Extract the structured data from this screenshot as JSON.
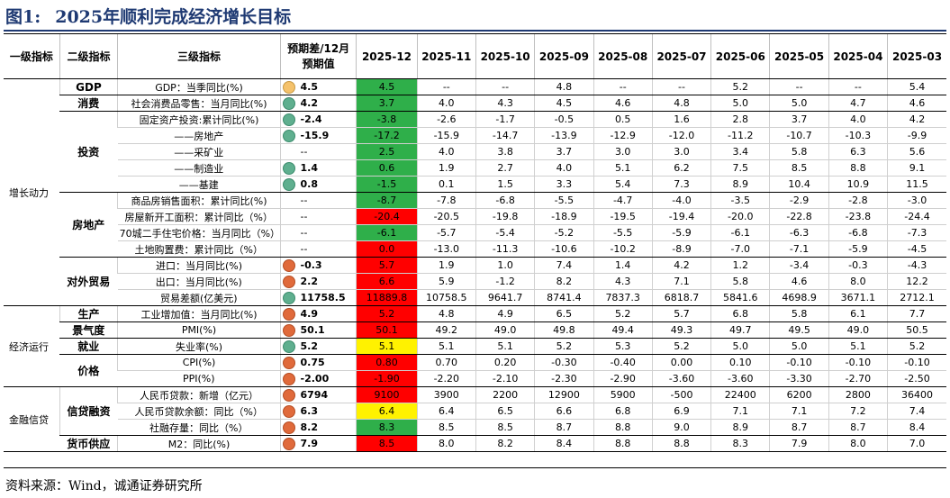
{
  "figure": {
    "number": "图1:",
    "title": "2025年顺利完成经济增长目标"
  },
  "header": {
    "l1": "一级指标",
    "l2": "二级指标",
    "l3": "三级指标",
    "pred_line1": "预期差/12月",
    "pred_line2": "预期值",
    "months": [
      "2025-12",
      "2025-11",
      "2025-10",
      "2025-09",
      "2025-08",
      "2025-07",
      "2025-06",
      "2025-05",
      "2025-04",
      "2025-03"
    ]
  },
  "groups_l1": [
    "增长动力",
    "经济运行",
    "金融信贷"
  ],
  "groups_l2": [
    "GDP",
    "消费",
    "投资",
    "房地产",
    "对外贸易",
    "生产",
    "景气度",
    "就业",
    "价格",
    "信贷融资",
    "货币供应"
  ],
  "rows": [
    {
      "name": "GDP：当季同比(%)",
      "dot": "yellow",
      "pred": "4.5",
      "fill": "green",
      "vals": [
        "4.5",
        "--",
        "--",
        "4.8",
        "--",
        "--",
        "5.2",
        "--",
        "--",
        "5.4"
      ]
    },
    {
      "name": "社会消费品零售：当月同比(%)",
      "dot": "green",
      "pred": "4.2",
      "fill": "green",
      "vals": [
        "3.7",
        "4.0",
        "4.3",
        "4.5",
        "4.6",
        "4.8",
        "5.0",
        "5.0",
        "4.7",
        "4.6"
      ]
    },
    {
      "name": "固定资产投资:累计同比(%)",
      "dot": "green",
      "pred": "-2.4",
      "fill": "green",
      "vals": [
        "-3.8",
        "-2.6",
        "-1.7",
        "-0.5",
        "0.5",
        "1.6",
        "2.8",
        "3.7",
        "4.0",
        "4.2"
      ]
    },
    {
      "name": "——房地产",
      "dot": "green",
      "pred": "-15.9",
      "fill": "green",
      "vals": [
        "-17.2",
        "-15.9",
        "-14.7",
        "-13.9",
        "-12.9",
        "-12.0",
        "-11.2",
        "-10.7",
        "-10.3",
        "-9.9"
      ]
    },
    {
      "name": "——采矿业",
      "dot": "",
      "pred": "--",
      "fill": "green",
      "vals": [
        "2.5",
        "4.0",
        "3.8",
        "3.7",
        "3.0",
        "3.0",
        "3.4",
        "5.8",
        "6.3",
        "5.6"
      ]
    },
    {
      "name": "——制造业",
      "dot": "green",
      "pred": "1.4",
      "fill": "green",
      "vals": [
        "0.6",
        "1.9",
        "2.7",
        "4.0",
        "5.1",
        "6.2",
        "7.5",
        "8.5",
        "8.8",
        "9.1"
      ]
    },
    {
      "name": "——基建",
      "dot": "green",
      "pred": "0.8",
      "fill": "green",
      "vals": [
        "-1.5",
        "0.1",
        "1.5",
        "3.3",
        "5.4",
        "7.3",
        "8.9",
        "10.4",
        "10.9",
        "11.5"
      ]
    },
    {
      "name": "商品房销售面积：累计同比(%)",
      "dot": "",
      "pred": "--",
      "fill": "green",
      "vals": [
        "-8.7",
        "-7.8",
        "-6.8",
        "-5.5",
        "-4.7",
        "-4.0",
        "-3.5",
        "-2.9",
        "-2.8",
        "-3.0"
      ]
    },
    {
      "name": "房屋新开工面积：累计同比（%）",
      "dot": "",
      "pred": "--",
      "fill": "red",
      "vals": [
        "-20.4",
        "-20.5",
        "-19.8",
        "-18.9",
        "-19.5",
        "-19.4",
        "-20.0",
        "-22.8",
        "-23.8",
        "-24.4"
      ]
    },
    {
      "name": "70城二手住宅价格：当月同比（%）",
      "dot": "",
      "pred": "--",
      "fill": "green",
      "vals": [
        "-6.1",
        "-5.7",
        "-5.4",
        "-5.2",
        "-5.5",
        "-5.9",
        "-6.1",
        "-6.3",
        "-6.8",
        "-7.3"
      ]
    },
    {
      "name": "土地购置费：累计同比（%）",
      "dot": "",
      "pred": "--",
      "fill": "red",
      "vals": [
        "0.0",
        "-13.0",
        "-11.3",
        "-10.6",
        "-10.2",
        "-8.9",
        "-7.0",
        "-7.1",
        "-5.9",
        "-4.5"
      ]
    },
    {
      "name": "进口：当月同比(%)",
      "dot": "red",
      "pred": "-0.3",
      "fill": "red",
      "vals": [
        "5.7",
        "1.9",
        "1.0",
        "7.4",
        "1.4",
        "4.2",
        "1.2",
        "-3.4",
        "-0.3",
        "-4.3"
      ]
    },
    {
      "name": "出口：当月同比(%)",
      "dot": "red",
      "pred": "2.2",
      "fill": "red",
      "vals": [
        "6.6",
        "5.9",
        "-1.2",
        "8.2",
        "4.3",
        "7.1",
        "5.8",
        "4.6",
        "8.0",
        "12.2"
      ]
    },
    {
      "name": "贸易差额(亿美元)",
      "dot": "green",
      "pred": "11758.5",
      "fill": "red",
      "vals": [
        "11889.8",
        "10758.5",
        "9641.7",
        "8741.4",
        "7837.3",
        "6818.7",
        "5841.6",
        "4698.9",
        "3671.1",
        "2712.1"
      ]
    },
    {
      "name": "工业增加值：当月同比(%)",
      "dot": "red",
      "pred": "4.9",
      "fill": "red",
      "vals": [
        "5.2",
        "4.8",
        "4.9",
        "6.5",
        "5.2",
        "5.7",
        "6.8",
        "5.8",
        "6.1",
        "7.7"
      ]
    },
    {
      "name": "PMI(%)",
      "dot": "red",
      "pred": "50.1",
      "fill": "red",
      "vals": [
        "50.1",
        "49.2",
        "49.0",
        "49.8",
        "49.4",
        "49.3",
        "49.7",
        "49.5",
        "49.0",
        "50.5"
      ]
    },
    {
      "name": "失业率(%)",
      "dot": "green",
      "pred": "5.2",
      "fill": "yellow",
      "vals": [
        "5.1",
        "5.1",
        "5.1",
        "5.2",
        "5.3",
        "5.2",
        "5.0",
        "5.0",
        "5.1",
        "5.2"
      ]
    },
    {
      "name": "CPI(%)",
      "dot": "red",
      "pred": "0.75",
      "fill": "red",
      "vals": [
        "0.80",
        "0.70",
        "0.20",
        "-0.30",
        "-0.40",
        "0.00",
        "0.10",
        "-0.10",
        "-0.10",
        "-0.10"
      ]
    },
    {
      "name": "PPI(%)",
      "dot": "red",
      "pred": "-2.00",
      "fill": "red",
      "vals": [
        "-1.90",
        "-2.20",
        "-2.10",
        "-2.30",
        "-2.90",
        "-3.60",
        "-3.60",
        "-3.30",
        "-2.70",
        "-2.50"
      ]
    },
    {
      "name": "人民币贷款：新增（亿元）",
      "dot": "red",
      "pred": "6794",
      "fill": "red",
      "vals": [
        "9100",
        "3900",
        "2200",
        "12900",
        "5900",
        "-500",
        "22400",
        "6200",
        "2800",
        "36400"
      ]
    },
    {
      "name": "人民币贷款余额：同比（%）",
      "dot": "red",
      "pred": "6.3",
      "fill": "yellow",
      "vals": [
        "6.4",
        "6.4",
        "6.5",
        "6.6",
        "6.8",
        "6.9",
        "7.1",
        "7.1",
        "7.2",
        "7.4"
      ]
    },
    {
      "name": "社融存量：同比（%）",
      "dot": "red",
      "pred": "8.2",
      "fill": "green",
      "vals": [
        "8.3",
        "8.5",
        "8.5",
        "8.7",
        "8.8",
        "9.0",
        "8.9",
        "8.7",
        "8.7",
        "8.4"
      ]
    },
    {
      "name": "M2：同比(%)",
      "dot": "red",
      "pred": "7.9",
      "fill": "red",
      "vals": [
        "8.5",
        "8.0",
        "8.2",
        "8.4",
        "8.8",
        "8.8",
        "8.3",
        "7.9",
        "8.0",
        "7.0"
      ]
    }
  ],
  "source": "资料来源：Wind，诚通证券研究所"
}
